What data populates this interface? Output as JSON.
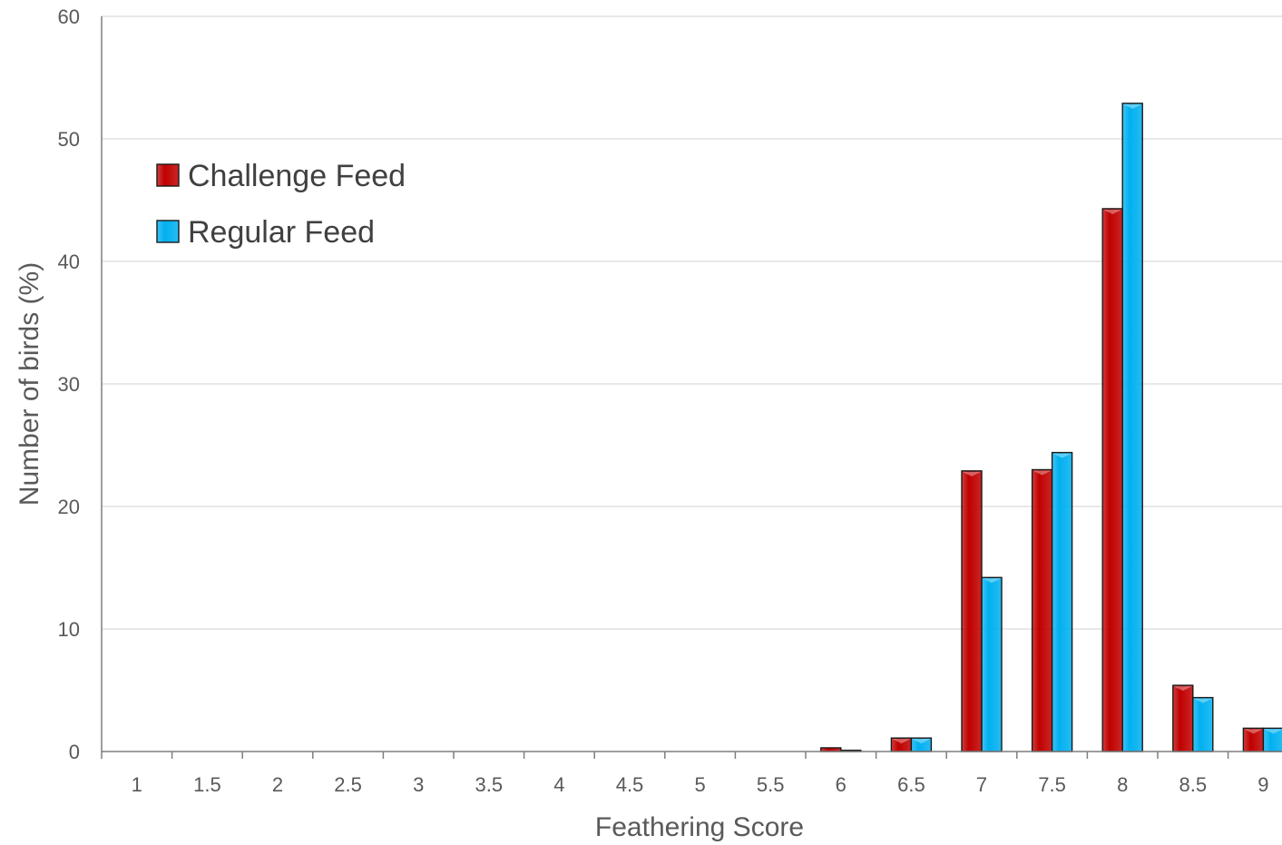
{
  "chart_data": {
    "type": "bar",
    "xlabel": "Feathering Score",
    "ylabel": "Number of birds (%)",
    "ylim": [
      0,
      60
    ],
    "yticks": [
      0,
      10,
      20,
      30,
      40,
      50,
      60
    ],
    "grid": "horizontal",
    "legend_position": "top-left",
    "categories": [
      "1",
      "1.5",
      "2",
      "2.5",
      "3",
      "3.5",
      "4",
      "4.5",
      "5",
      "5.5",
      "6",
      "6.5",
      "7",
      "7.5",
      "8",
      "8.5",
      "9"
    ],
    "series": [
      {
        "name": "Challenge Feed",
        "color": "#c00000",
        "values": [
          0,
          0,
          0,
          0,
          0,
          0,
          0,
          0,
          0,
          0,
          0.3,
          1.1,
          22.9,
          23.0,
          44.3,
          5.4,
          1.9
        ]
      },
      {
        "name": "Regular Feed",
        "color": "#00b0f0",
        "values": [
          0,
          0,
          0,
          0,
          0,
          0,
          0,
          0,
          0,
          0,
          0.1,
          1.1,
          14.2,
          24.4,
          52.9,
          4.4,
          1.9
        ]
      }
    ]
  }
}
